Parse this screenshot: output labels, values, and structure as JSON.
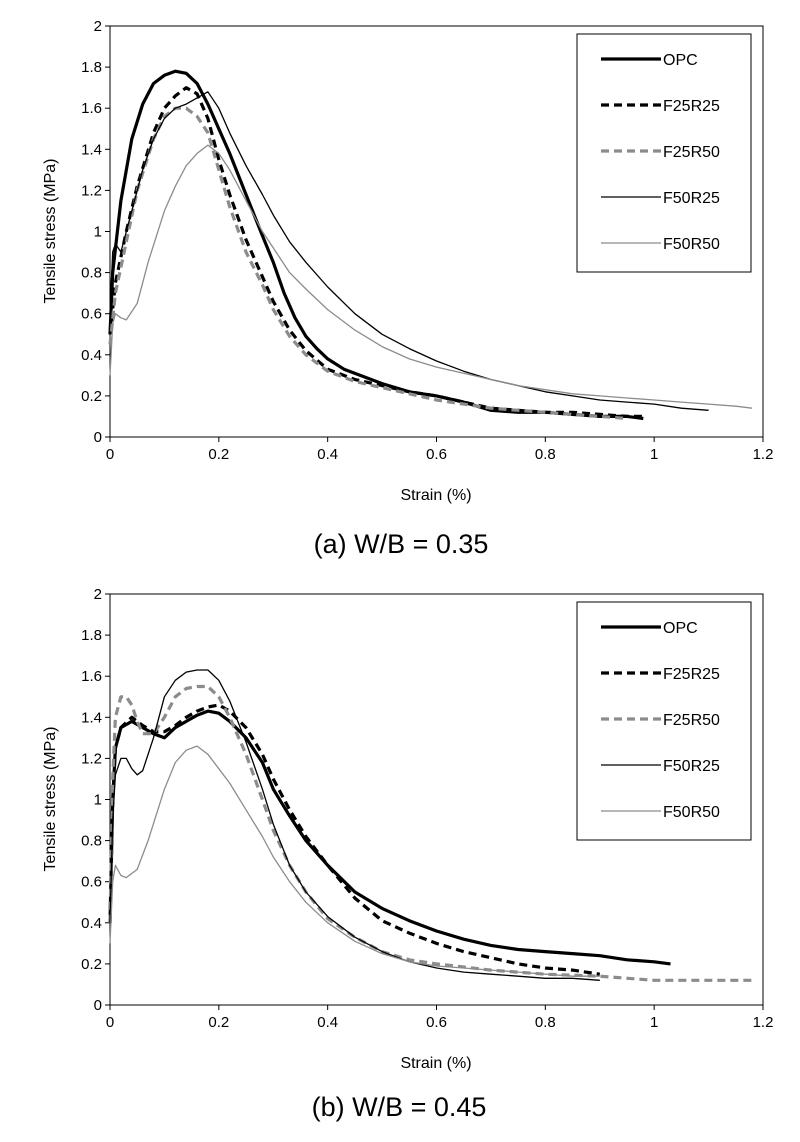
{
  "chart_data": [
    {
      "type": "line",
      "caption": "(a)  W/B  =  0.35",
      "xlabel": "Strain (%)",
      "ylabel": "Tensile stress (MPa)",
      "xlim": [
        0,
        1.2
      ],
      "ylim": [
        0,
        2
      ],
      "xticks": [
        "0",
        "0.2",
        "0.4",
        "0.6",
        "0.8",
        "1",
        "1.2"
      ],
      "yticks": [
        "0",
        "0.2",
        "0.4",
        "0.6",
        "0.8",
        "1",
        "1.2",
        "1.4",
        "1.6",
        "1.8",
        "2"
      ],
      "grid": false,
      "legend_position": "top-right",
      "series": [
        {
          "name": "OPC",
          "color": "#000000",
          "style": "solid-thick",
          "x": [
            0,
            0.005,
            0.02,
            0.04,
            0.06,
            0.08,
            0.1,
            0.12,
            0.14,
            0.16,
            0.18,
            0.2,
            0.22,
            0.25,
            0.28,
            0.3,
            0.32,
            0.34,
            0.36,
            0.38,
            0.4,
            0.43,
            0.46,
            0.5,
            0.55,
            0.6,
            0.65,
            0.7,
            0.75,
            0.8,
            0.85,
            0.9,
            0.95,
            0.98
          ],
          "y": [
            0.5,
            0.8,
            1.15,
            1.45,
            1.62,
            1.72,
            1.76,
            1.78,
            1.77,
            1.72,
            1.62,
            1.5,
            1.38,
            1.18,
            0.98,
            0.85,
            0.7,
            0.58,
            0.49,
            0.43,
            0.38,
            0.33,
            0.3,
            0.26,
            0.22,
            0.2,
            0.17,
            0.13,
            0.12,
            0.12,
            0.11,
            0.1,
            0.1,
            0.09
          ]
        },
        {
          "name": "F25R25",
          "color": "#000000",
          "style": "dashed-thick",
          "x": [
            0,
            0.01,
            0.03,
            0.05,
            0.08,
            0.1,
            0.12,
            0.14,
            0.16,
            0.18,
            0.2,
            0.22,
            0.25,
            0.28,
            0.3,
            0.33,
            0.36,
            0.4,
            0.45,
            0.5,
            0.55,
            0.6,
            0.65,
            0.7,
            0.75,
            0.8,
            0.85,
            0.9,
            0.95,
            0.98
          ],
          "y": [
            0.5,
            0.75,
            1.0,
            1.22,
            1.48,
            1.6,
            1.66,
            1.7,
            1.67,
            1.55,
            1.35,
            1.18,
            0.96,
            0.78,
            0.66,
            0.52,
            0.42,
            0.33,
            0.28,
            0.25,
            0.22,
            0.2,
            0.17,
            0.14,
            0.13,
            0.12,
            0.12,
            0.11,
            0.1,
            0.1
          ]
        },
        {
          "name": "F25R50",
          "color": "#8c8c8c",
          "style": "dashed-thick",
          "x": [
            0,
            0.01,
            0.03,
            0.05,
            0.08,
            0.1,
            0.12,
            0.14,
            0.16,
            0.18,
            0.2,
            0.22,
            0.25,
            0.28,
            0.3,
            0.33,
            0.36,
            0.4,
            0.45,
            0.5,
            0.55,
            0.6,
            0.65,
            0.7,
            0.75,
            0.8,
            0.85,
            0.9,
            0.95
          ],
          "y": [
            0.45,
            0.7,
            0.95,
            1.2,
            1.45,
            1.56,
            1.6,
            1.6,
            1.56,
            1.48,
            1.3,
            1.12,
            0.9,
            0.74,
            0.62,
            0.49,
            0.4,
            0.32,
            0.27,
            0.24,
            0.21,
            0.18,
            0.16,
            0.14,
            0.13,
            0.12,
            0.11,
            0.1,
            0.09
          ]
        },
        {
          "name": "F50R25",
          "color": "#000000",
          "style": "solid-thin",
          "x": [
            0,
            0.005,
            0.01,
            0.02,
            0.04,
            0.06,
            0.08,
            0.1,
            0.12,
            0.14,
            0.16,
            0.18,
            0.2,
            0.22,
            0.25,
            0.28,
            0.3,
            0.33,
            0.36,
            0.4,
            0.45,
            0.5,
            0.55,
            0.6,
            0.65,
            0.7,
            0.75,
            0.8,
            0.85,
            0.9,
            0.95,
            1.0,
            1.05,
            1.1
          ],
          "y": [
            0.6,
            0.9,
            0.94,
            0.9,
            1.1,
            1.3,
            1.45,
            1.55,
            1.6,
            1.62,
            1.65,
            1.68,
            1.6,
            1.48,
            1.32,
            1.18,
            1.08,
            0.95,
            0.85,
            0.73,
            0.6,
            0.5,
            0.43,
            0.37,
            0.32,
            0.28,
            0.25,
            0.22,
            0.2,
            0.18,
            0.17,
            0.16,
            0.14,
            0.13
          ]
        },
        {
          "name": "F50R50",
          "color": "#8c8c8c",
          "style": "solid-thin",
          "x": [
            0,
            0.005,
            0.01,
            0.02,
            0.03,
            0.05,
            0.07,
            0.1,
            0.12,
            0.14,
            0.16,
            0.18,
            0.2,
            0.22,
            0.25,
            0.28,
            0.3,
            0.33,
            0.36,
            0.4,
            0.45,
            0.5,
            0.55,
            0.6,
            0.65,
            0.7,
            0.75,
            0.8,
            0.85,
            0.9,
            0.95,
            1.0,
            1.05,
            1.1,
            1.15,
            1.18
          ],
          "y": [
            0.3,
            0.55,
            0.6,
            0.58,
            0.57,
            0.65,
            0.85,
            1.1,
            1.22,
            1.32,
            1.38,
            1.42,
            1.38,
            1.3,
            1.15,
            1.0,
            0.92,
            0.8,
            0.72,
            0.62,
            0.52,
            0.44,
            0.38,
            0.34,
            0.31,
            0.28,
            0.25,
            0.23,
            0.21,
            0.2,
            0.19,
            0.18,
            0.17,
            0.16,
            0.15,
            0.14
          ]
        }
      ]
    },
    {
      "type": "line",
      "caption": "(b)  W/B  =  0.45",
      "xlabel": "Strain (%)",
      "ylabel": "Tensile stress (MPa)",
      "xlim": [
        0,
        1.2
      ],
      "ylim": [
        0,
        2
      ],
      "xticks": [
        "0",
        "0.2",
        "0.4",
        "0.6",
        "0.8",
        "1",
        "1.2"
      ],
      "yticks": [
        "0",
        "0.2",
        "0.4",
        "0.6",
        "0.8",
        "1",
        "1.2",
        "1.4",
        "1.6",
        "1.8",
        "2"
      ],
      "grid": false,
      "legend_position": "top-right",
      "series": [
        {
          "name": "OPC",
          "color": "#000000",
          "style": "solid-thick",
          "x": [
            0,
            0.005,
            0.01,
            0.02,
            0.04,
            0.06,
            0.08,
            0.1,
            0.12,
            0.14,
            0.16,
            0.18,
            0.2,
            0.22,
            0.25,
            0.28,
            0.3,
            0.33,
            0.36,
            0.4,
            0.45,
            0.5,
            0.55,
            0.6,
            0.65,
            0.7,
            0.75,
            0.8,
            0.85,
            0.9,
            0.95,
            1.0,
            1.03
          ],
          "y": [
            0.4,
            1.0,
            1.25,
            1.35,
            1.38,
            1.35,
            1.32,
            1.3,
            1.35,
            1.38,
            1.41,
            1.43,
            1.42,
            1.38,
            1.3,
            1.18,
            1.05,
            0.92,
            0.8,
            0.68,
            0.55,
            0.47,
            0.41,
            0.36,
            0.32,
            0.29,
            0.27,
            0.26,
            0.25,
            0.24,
            0.22,
            0.21,
            0.2
          ]
        },
        {
          "name": "F25R25",
          "color": "#000000",
          "style": "dashed-thick",
          "x": [
            0,
            0.005,
            0.01,
            0.02,
            0.04,
            0.06,
            0.08,
            0.1,
            0.12,
            0.14,
            0.16,
            0.18,
            0.2,
            0.22,
            0.25,
            0.28,
            0.3,
            0.33,
            0.36,
            0.4,
            0.45,
            0.5,
            0.55,
            0.6,
            0.65,
            0.7,
            0.75,
            0.8,
            0.85,
            0.9
          ],
          "y": [
            0.4,
            1.0,
            1.25,
            1.35,
            1.4,
            1.36,
            1.33,
            1.33,
            1.36,
            1.4,
            1.43,
            1.45,
            1.46,
            1.43,
            1.35,
            1.22,
            1.1,
            0.95,
            0.82,
            0.68,
            0.52,
            0.41,
            0.35,
            0.3,
            0.26,
            0.23,
            0.2,
            0.18,
            0.17,
            0.15
          ]
        },
        {
          "name": "F25R50",
          "color": "#8c8c8c",
          "style": "dashed-thick",
          "x": [
            0,
            0.005,
            0.01,
            0.02,
            0.03,
            0.04,
            0.05,
            0.06,
            0.08,
            0.1,
            0.12,
            0.14,
            0.16,
            0.18,
            0.2,
            0.22,
            0.25,
            0.28,
            0.3,
            0.33,
            0.36,
            0.4,
            0.45,
            0.5,
            0.55,
            0.6,
            0.7,
            0.8,
            0.9,
            1.0,
            1.1,
            1.18
          ],
          "y": [
            0.4,
            1.1,
            1.4,
            1.5,
            1.5,
            1.46,
            1.38,
            1.32,
            1.32,
            1.4,
            1.5,
            1.54,
            1.55,
            1.55,
            1.5,
            1.4,
            1.22,
            1.0,
            0.85,
            0.68,
            0.55,
            0.42,
            0.33,
            0.26,
            0.22,
            0.2,
            0.17,
            0.15,
            0.14,
            0.12,
            0.12,
            0.12
          ]
        },
        {
          "name": "F50R25",
          "color": "#000000",
          "style": "solid-thin",
          "x": [
            0,
            0.005,
            0.01,
            0.02,
            0.03,
            0.04,
            0.05,
            0.06,
            0.08,
            0.1,
            0.12,
            0.14,
            0.16,
            0.18,
            0.2,
            0.22,
            0.25,
            0.28,
            0.3,
            0.33,
            0.36,
            0.4,
            0.45,
            0.5,
            0.55,
            0.6,
            0.65,
            0.7,
            0.75,
            0.8,
            0.85,
            0.9
          ],
          "y": [
            0.4,
            0.9,
            1.12,
            1.2,
            1.2,
            1.15,
            1.12,
            1.14,
            1.3,
            1.5,
            1.58,
            1.62,
            1.63,
            1.63,
            1.58,
            1.48,
            1.28,
            1.05,
            0.88,
            0.68,
            0.55,
            0.43,
            0.33,
            0.26,
            0.21,
            0.18,
            0.16,
            0.15,
            0.14,
            0.13,
            0.13,
            0.12
          ]
        },
        {
          "name": "F50R50",
          "color": "#8c8c8c",
          "style": "solid-thin",
          "x": [
            0,
            0.005,
            0.01,
            0.02,
            0.03,
            0.05,
            0.07,
            0.1,
            0.12,
            0.14,
            0.16,
            0.18,
            0.2,
            0.22,
            0.25,
            0.28,
            0.3,
            0.33,
            0.36,
            0.4,
            0.45,
            0.5,
            0.55,
            0.6,
            0.65,
            0.7,
            0.75,
            0.8,
            0.85,
            0.9
          ],
          "y": [
            0.3,
            0.6,
            0.68,
            0.63,
            0.62,
            0.66,
            0.8,
            1.05,
            1.18,
            1.24,
            1.26,
            1.22,
            1.15,
            1.08,
            0.95,
            0.82,
            0.72,
            0.6,
            0.5,
            0.4,
            0.31,
            0.25,
            0.21,
            0.19,
            0.18,
            0.17,
            0.16,
            0.15,
            0.14,
            0.14
          ]
        }
      ]
    }
  ]
}
